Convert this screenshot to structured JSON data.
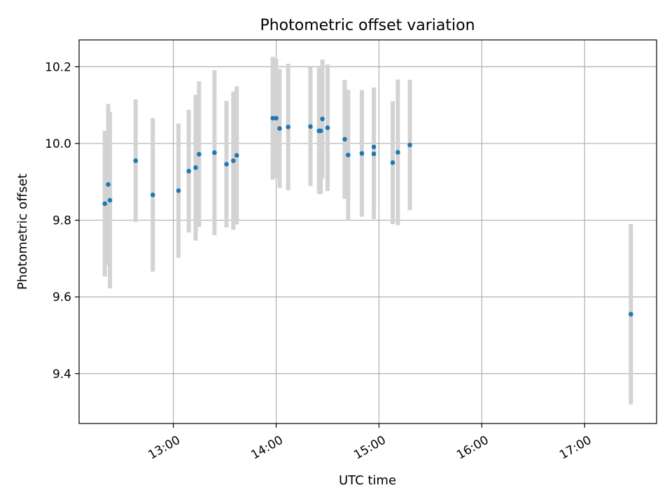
{
  "chart_data": {
    "type": "scatter",
    "title": "Photometric offset variation",
    "xlabel": "UTC time",
    "ylabel": "Photometric offset",
    "xlim": [
      "12:05",
      "17:42"
    ],
    "ylim": [
      9.27,
      10.27
    ],
    "grid": true,
    "x_ticks": [
      "13:00",
      "14:00",
      "15:00",
      "16:00",
      "17:00"
    ],
    "y_ticks": [
      "9.4",
      "9.6",
      "9.8",
      "10.0",
      "10.2"
    ],
    "colors": {
      "points": "#1f77b4",
      "errorbars": "#d3d3d3",
      "grid": "#b0b0b0"
    },
    "series": [
      {
        "points": [
          {
            "x": "12:20",
            "y": 9.843,
            "err": 0.19
          },
          {
            "x": "12:22",
            "y": 9.893,
            "err": 0.21
          },
          {
            "x": "12:23",
            "y": 9.852,
            "err": 0.23
          },
          {
            "x": "12:38",
            "y": 9.955,
            "err": 0.16
          },
          {
            "x": "12:48",
            "y": 9.866,
            "err": 0.2
          },
          {
            "x": "13:03",
            "y": 9.877,
            "err": 0.175
          },
          {
            "x": "13:09",
            "y": 9.928,
            "err": 0.16
          },
          {
            "x": "13:13",
            "y": 9.937,
            "err": 0.19
          },
          {
            "x": "13:15",
            "y": 9.972,
            "err": 0.19
          },
          {
            "x": "13:24",
            "y": 9.976,
            "err": 0.215
          },
          {
            "x": "13:31",
            "y": 9.946,
            "err": 0.165
          },
          {
            "x": "13:35",
            "y": 9.955,
            "err": 0.18
          },
          {
            "x": "13:37",
            "y": 9.969,
            "err": 0.18
          },
          {
            "x": "13:58",
            "y": 10.066,
            "err": 0.16
          },
          {
            "x": "14:00",
            "y": 10.066,
            "err": 0.155
          },
          {
            "x": "14:02",
            "y": 10.039,
            "err": 0.155
          },
          {
            "x": "14:07",
            "y": 10.043,
            "err": 0.165
          },
          {
            "x": "14:20",
            "y": 10.044,
            "err": 0.155
          },
          {
            "x": "14:25",
            "y": 10.033,
            "err": 0.165
          },
          {
            "x": "14:26",
            "y": 10.033,
            "err": 0.165
          },
          {
            "x": "14:27",
            "y": 10.064,
            "err": 0.155
          },
          {
            "x": "14:30",
            "y": 10.041,
            "err": 0.165
          },
          {
            "x": "14:40",
            "y": 10.011,
            "err": 0.155
          },
          {
            "x": "14:42",
            "y": 9.97,
            "err": 0.17
          },
          {
            "x": "14:50",
            "y": 9.974,
            "err": 0.165
          },
          {
            "x": "14:57",
            "y": 9.973,
            "err": 0.17
          },
          {
            "x": "14:57",
            "y": 9.991,
            "err": 0.155
          },
          {
            "x": "15:08",
            "y": 9.95,
            "err": 0.16
          },
          {
            "x": "15:11",
            "y": 9.977,
            "err": 0.19
          },
          {
            "x": "15:18",
            "y": 9.996,
            "err": 0.17
          },
          {
            "x": "17:27",
            "y": 9.555,
            "err": 0.235
          }
        ]
      }
    ]
  }
}
